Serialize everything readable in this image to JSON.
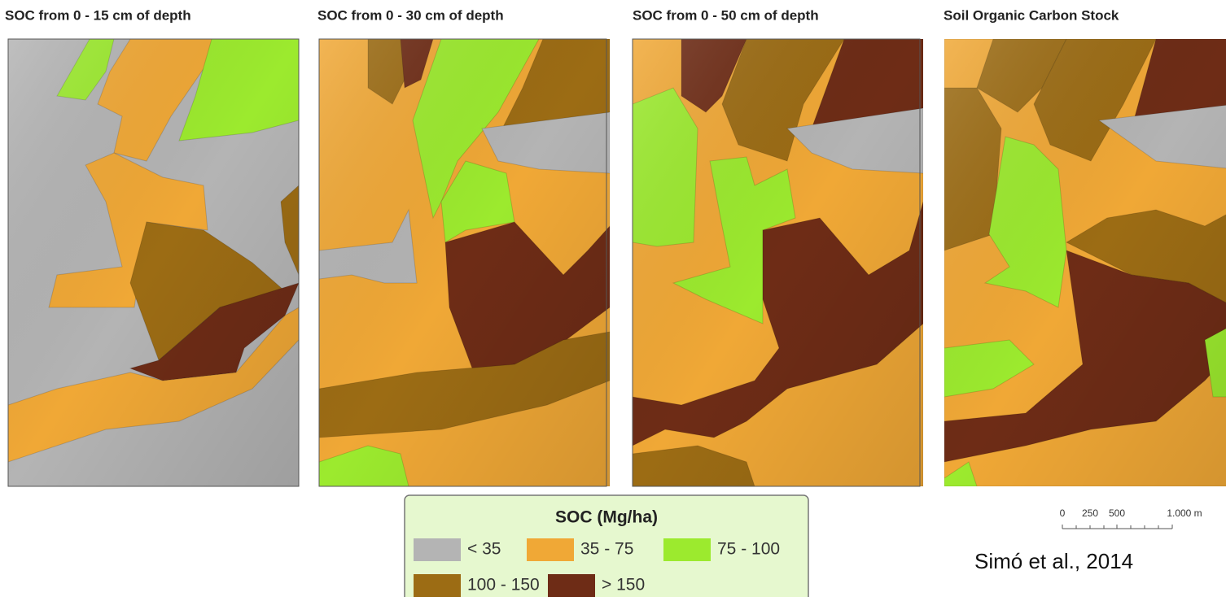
{
  "panels": [
    {
      "title": "SOC from 0 - 15 cm of depth"
    },
    {
      "title": "SOC from 0 - 30 cm of depth"
    },
    {
      "title": "SOC from 0 - 50 cm of depth"
    },
    {
      "title": "Soil Organic Carbon Stock"
    }
  ],
  "legend": {
    "title": "SOC (Mg/ha)",
    "items": [
      {
        "label": "< 35",
        "color": "#b4b4b4"
      },
      {
        "label": "35 - 75",
        "color": "#f0a836"
      },
      {
        "label": "75 - 100",
        "color": "#9cea2e"
      },
      {
        "label": "100 - 150",
        "color": "#9c6c14"
      },
      {
        "label": "> 150",
        "color": "#6e2c16"
      }
    ]
  },
  "scale_bar": {
    "labels": [
      "0",
      "250",
      "500",
      "1.000 m"
    ]
  },
  "citation": "Simó et al., 2014"
}
